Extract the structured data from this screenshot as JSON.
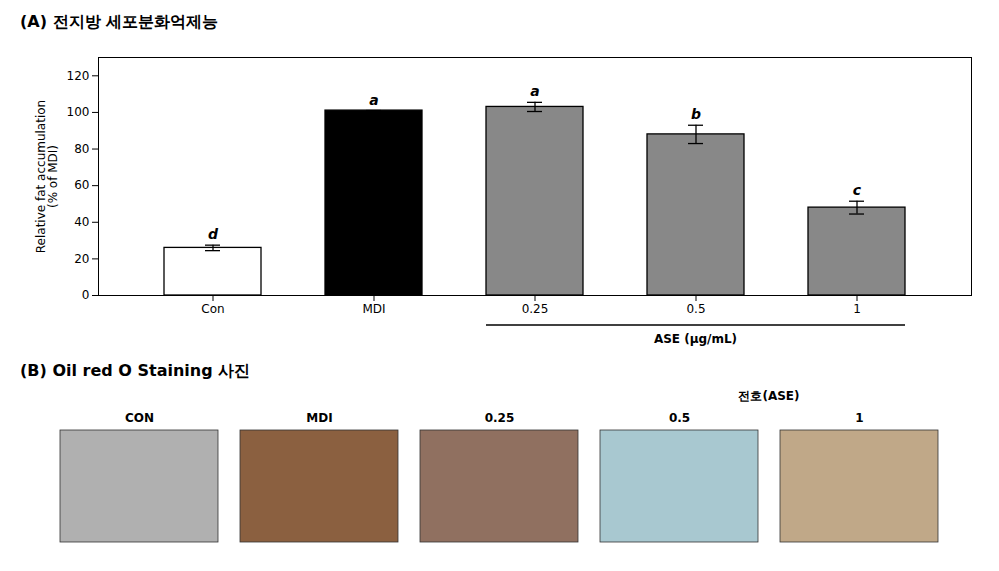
{
  "chart_data": [
    {
      "type": "bar",
      "title": "(A)  전지방 세포분화억제능",
      "categories": [
        "Con",
        "MDI",
        "0.25",
        "0.5",
        "1"
      ],
      "values": [
        26.0,
        101.0,
        103.0,
        88.0,
        48.0
      ],
      "errors": [
        1.5,
        0.0,
        2.5,
        5.0,
        3.5
      ],
      "significance_labels": [
        "d",
        "a",
        "a",
        "b",
        "c"
      ],
      "colors": [
        "#ffffff",
        "#000000",
        "#888888",
        "#888888",
        "#888888"
      ],
      "ylabel": "Relative fat accumulation\n(% of MDI)",
      "ylim": [
        0,
        130
      ],
      "yticks": [
        0,
        20,
        40,
        60,
        80,
        100,
        120
      ],
      "grid": false,
      "annotations": [
        {
          "text": "ASE (μg/mL)",
          "categories": [
            "0.25",
            "0.5",
            "1"
          ]
        }
      ]
    },
    {
      "type": "image_grid",
      "title": "(B)  Oil red O Staining 사진",
      "categories": [
        "CON",
        "MDI",
        "0.25",
        "0.5",
        "1"
      ],
      "colors": [
        "#b0b0b0",
        "#8b6040",
        "#907060",
        "#a8c8d0",
        "#c0a888"
      ],
      "annotations": [
        {
          "text": "전호(ASE)",
          "categories": [
            "0.5",
            "1"
          ]
        }
      ]
    }
  ]
}
